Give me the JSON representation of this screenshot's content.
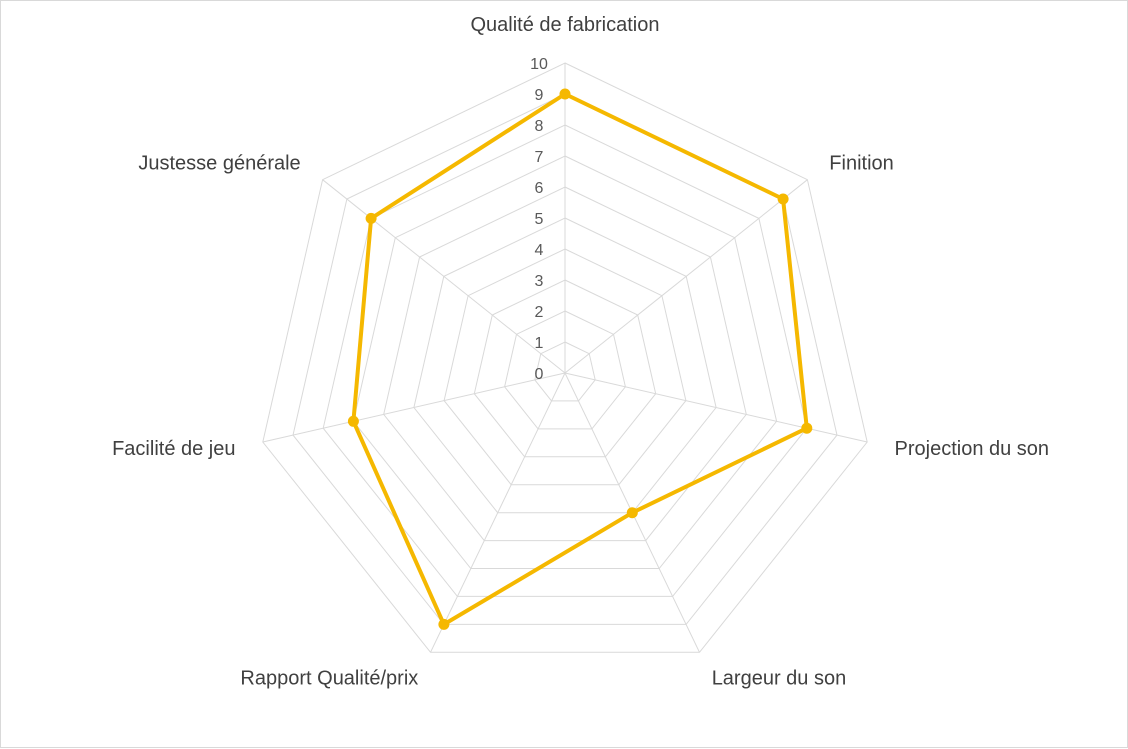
{
  "chart_data": {
    "type": "radar",
    "title": "",
    "categories": [
      "Qualité de fabrication",
      "Finition",
      "Projection du son",
      "Largeur du son",
      "Rapport Qualité/prix",
      "Facilité de jeu",
      "Justesse générale"
    ],
    "series": [
      {
        "values": [
          9,
          9,
          8,
          5,
          9,
          7,
          8
        ],
        "color": "#f5b800"
      }
    ],
    "rlim": [
      0,
      10
    ],
    "ticks": [
      "0",
      "1",
      "2",
      "3",
      "4",
      "5",
      "6",
      "7",
      "8",
      "9",
      "10"
    ],
    "grid": true,
    "legend": "none"
  }
}
